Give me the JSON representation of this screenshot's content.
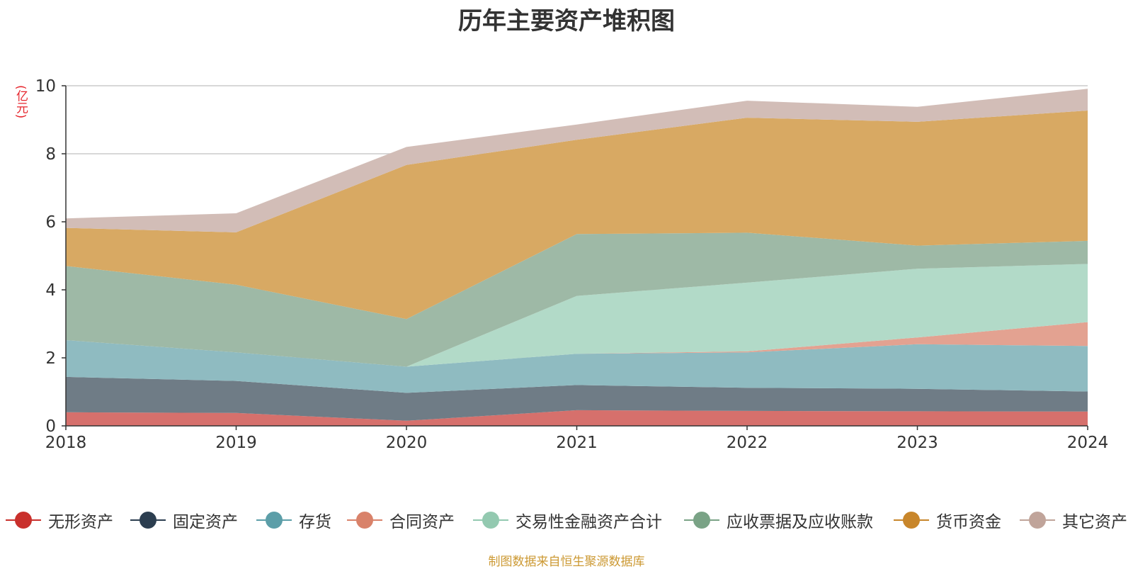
{
  "colors": {
    "grid": "#cccccc",
    "axis": "#333333",
    "tick_text": "#333333",
    "unit_text": "#e6262d",
    "footer_text": "#cc9933"
  },
  "chart_data": {
    "type": "area",
    "stacked": true,
    "title": "历年主要资产堆积图",
    "ylabel": "(亿元)",
    "x": [
      "2018",
      "2019",
      "2020",
      "2021",
      "2022",
      "2023",
      "2024"
    ],
    "ylim": [
      0,
      10
    ],
    "yticks": [
      "0",
      "2",
      "4",
      "6",
      "8",
      "10"
    ],
    "grid": true,
    "legend_position": "bottom",
    "series": [
      {
        "name": "无形资产",
        "color": "#d6706c",
        "marker": "#c9302c",
        "values": [
          0.4,
          0.38,
          0.15,
          0.46,
          0.44,
          0.43,
          0.42
        ]
      },
      {
        "name": "固定资产",
        "color": "#6f7c86",
        "marker": "#2c3e50",
        "values": [
          1.04,
          0.94,
          0.82,
          0.74,
          0.68,
          0.66,
          0.59
        ]
      },
      {
        "name": "存货",
        "color": "#8fbbc1",
        "marker": "#5c9ea8",
        "values": [
          1.08,
          0.84,
          0.77,
          0.92,
          1.04,
          1.31,
          1.34
        ]
      },
      {
        "name": "合同资产",
        "color": "#e3a291",
        "marker": "#d9826a",
        "values": [
          0,
          0,
          0,
          0,
          0.03,
          0.2,
          0.7
        ]
      },
      {
        "name": "交易性金融资产合计",
        "color": "#b2dac8",
        "marker": "#93c9b0",
        "values": [
          0,
          0,
          0,
          1.7,
          2.02,
          2.02,
          1.71
        ]
      },
      {
        "name": "应收票据及应收账款",
        "color": "#9eb9a6",
        "marker": "#7aa386",
        "values": [
          2.18,
          1.99,
          1.4,
          1.82,
          1.47,
          0.68,
          0.68
        ]
      },
      {
        "name": "货币资金",
        "color": "#d8a963",
        "marker": "#c8862b",
        "values": [
          1.12,
          1.54,
          4.53,
          2.77,
          3.38,
          3.64,
          3.83
        ]
      },
      {
        "name": "其它资产",
        "color": "#d2bdb7",
        "marker": "#c0a49a",
        "values": [
          0.28,
          0.56,
          0.53,
          0.45,
          0.5,
          0.44,
          0.64
        ]
      }
    ]
  },
  "footer": {
    "source": "制图数据来自恒生聚源数据库"
  }
}
